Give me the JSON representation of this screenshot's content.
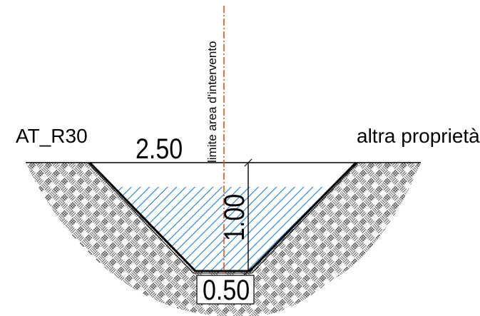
{
  "labels": {
    "left_zone": "AT_R30",
    "right_zone": "altra proprietà",
    "boundary": "limite area d'intervento"
  },
  "dimensions": {
    "top_width": "2.50",
    "depth": "1.00",
    "bottom_width": "0.50"
  },
  "colors": {
    "line": "#000000",
    "water_hatch": "#1e7fd6",
    "boundary_line": "#e8501e",
    "soil_hatch": "#333333",
    "background": "#ffffff"
  }
}
